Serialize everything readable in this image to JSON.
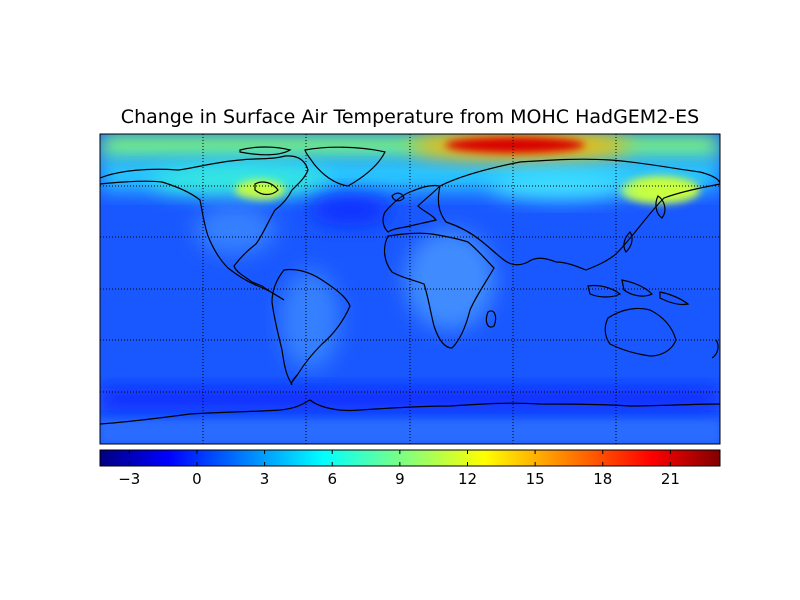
{
  "title": "Change in Surface Air Temperature from MOHC HadGEM2-ES",
  "colormap": "jet",
  "colors": {
    "jet_stops": [
      "#000080",
      "#0000ff",
      "#00ffff",
      "#ffff00",
      "#ff0000",
      "#800000"
    ],
    "coastline": "#000000",
    "gridline": "#000000"
  },
  "grid": {
    "meridians": true,
    "parallels": true,
    "style": "dotted"
  },
  "colorbar": {
    "orientation": "horizontal",
    "placement": "bottom",
    "vmin": -4.3,
    "vmax": 23.2,
    "ticks": [
      {
        "value": -3,
        "label": "−3"
      },
      {
        "value": 0,
        "label": "0"
      },
      {
        "value": 3,
        "label": "3"
      },
      {
        "value": 6,
        "label": "6"
      },
      {
        "value": 9,
        "label": "9"
      },
      {
        "value": 12,
        "label": "12"
      },
      {
        "value": 15,
        "label": "15"
      },
      {
        "value": 18,
        "label": "18"
      },
      {
        "value": 21,
        "label": "21"
      }
    ]
  }
}
